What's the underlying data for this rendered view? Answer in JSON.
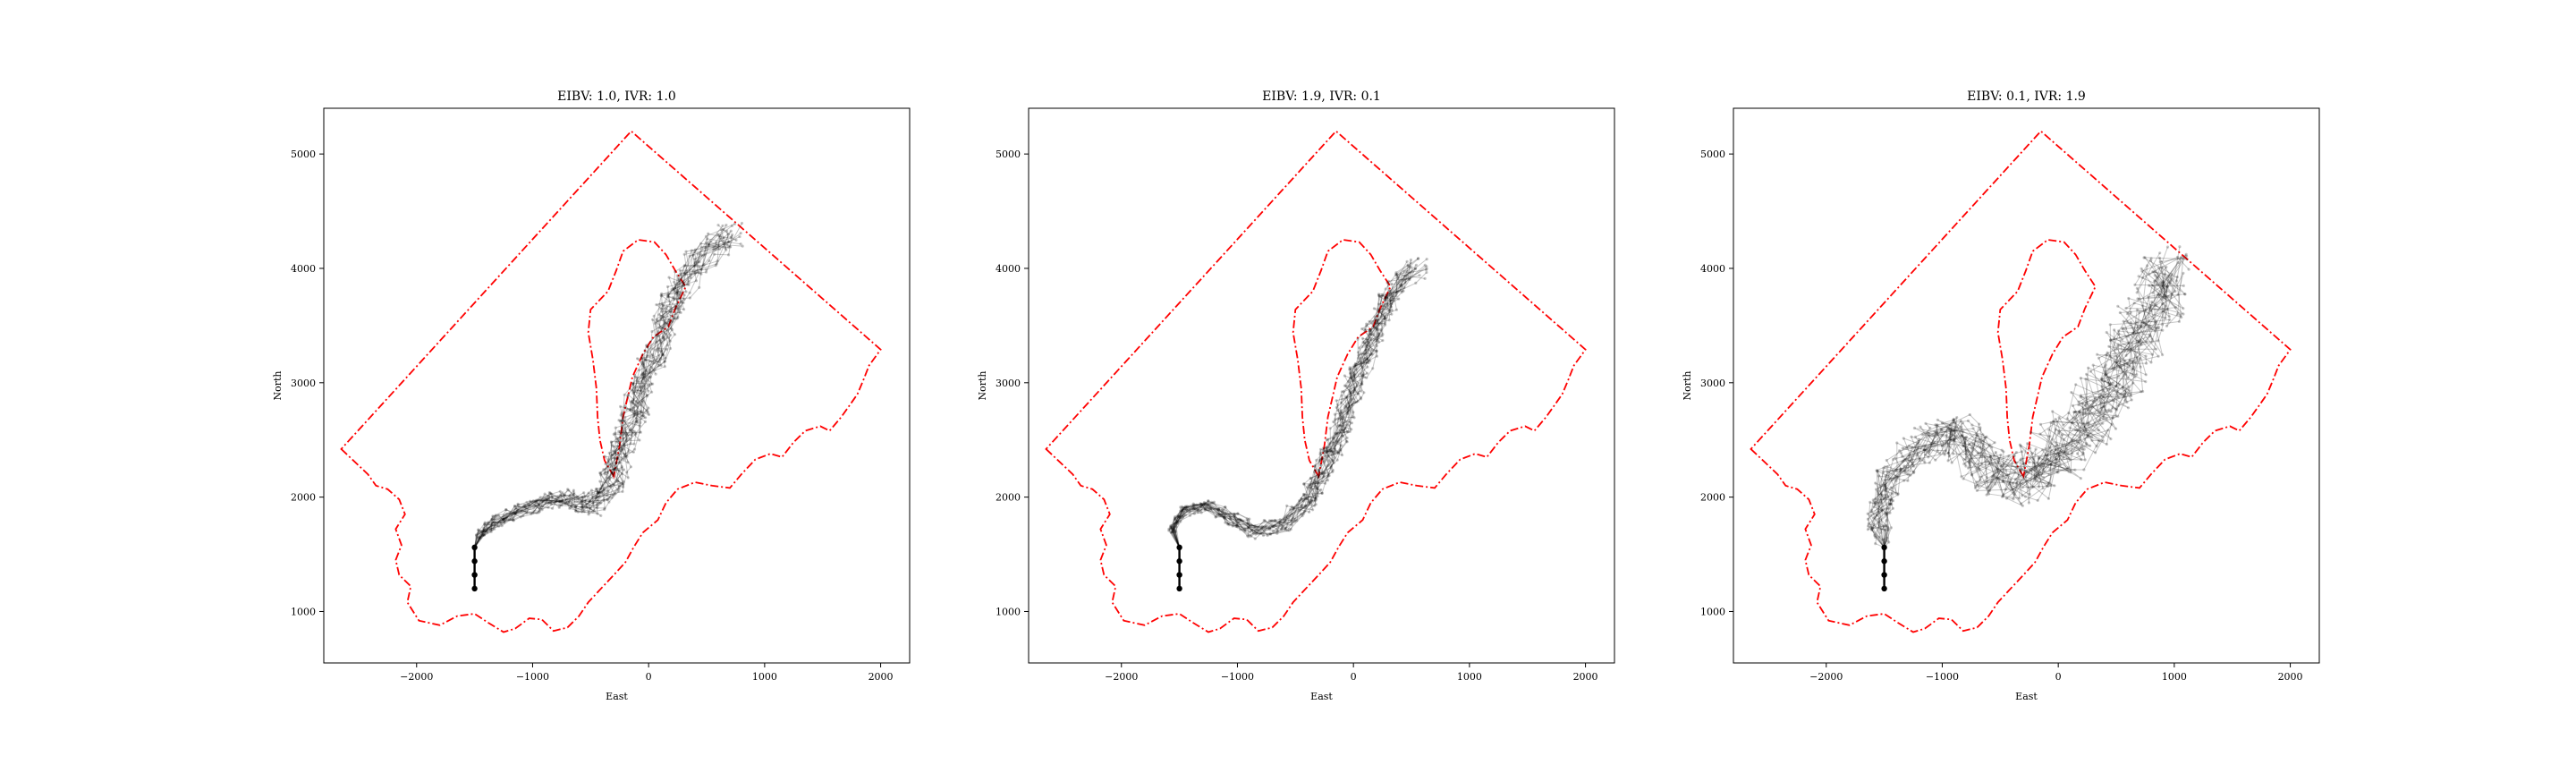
{
  "chart_data": [
    {
      "type": "line",
      "title": "EIBV: 1.0, IVR: 1.0",
      "xlabel": "East",
      "ylabel": "North",
      "xlim": [
        -2800,
        2250
      ],
      "ylim": [
        550,
        5400
      ],
      "xticks": [
        -2000,
        -1000,
        0,
        1000,
        2000
      ],
      "yticks": [
        1000,
        2000,
        3000,
        4000,
        5000
      ],
      "tick_labels_x": [
        "−2000",
        "−1000",
        "0",
        "1000",
        "2000"
      ],
      "tick_labels_y": [
        "1000",
        "2000",
        "3000",
        "4000",
        "5000"
      ],
      "grid": false,
      "path_color": "#000000",
      "boundary_color": "#ff0000",
      "start": [
        -1500,
        1200
      ],
      "initial_path": [
        [
          -1500,
          1200
        ],
        [
          -1500,
          1320
        ],
        [
          -1500,
          1440
        ],
        [
          -1500,
          1560
        ]
      ],
      "route_centerline": [
        [
          -1500,
          1560
        ],
        [
          -1450,
          1680
        ],
        [
          -1300,
          1790
        ],
        [
          -1100,
          1880
        ],
        [
          -900,
          1960
        ],
        [
          -700,
          1990
        ],
        [
          -500,
          1920
        ],
        [
          -350,
          2050
        ],
        [
          -250,
          2350
        ],
        [
          -100,
          2800
        ],
        [
          50,
          3250
        ],
        [
          200,
          3700
        ],
        [
          400,
          4050
        ],
        [
          700,
          4300
        ]
      ],
      "route_spread": 110,
      "n_runs": 22
    },
    {
      "type": "line",
      "title": "EIBV: 1.9, IVR: 0.1",
      "xlabel": "East",
      "ylabel": "North",
      "xlim": [
        -2800,
        2250
      ],
      "ylim": [
        550,
        5400
      ],
      "xticks": [
        -2000,
        -1000,
        0,
        1000,
        2000
      ],
      "yticks": [
        1000,
        2000,
        3000,
        4000,
        5000
      ],
      "tick_labels_x": [
        "−2000",
        "−1000",
        "0",
        "1000",
        "2000"
      ],
      "tick_labels_y": [
        "1000",
        "2000",
        "3000",
        "4000",
        "5000"
      ],
      "grid": false,
      "path_color": "#000000",
      "boundary_color": "#ff0000",
      "start": [
        -1500,
        1200
      ],
      "initial_path": [
        [
          -1500,
          1200
        ],
        [
          -1500,
          1320
        ],
        [
          -1500,
          1440
        ],
        [
          -1500,
          1560
        ]
      ],
      "route_centerline": [
        [
          -1500,
          1560
        ],
        [
          -1560,
          1720
        ],
        [
          -1450,
          1880
        ],
        [
          -1250,
          1920
        ],
        [
          -1050,
          1800
        ],
        [
          -850,
          1700
        ],
        [
          -600,
          1760
        ],
        [
          -400,
          1950
        ],
        [
          -250,
          2250
        ],
        [
          -100,
          2650
        ],
        [
          50,
          3100
        ],
        [
          200,
          3500
        ],
        [
          350,
          3800
        ],
        [
          550,
          4000
        ]
      ],
      "route_spread": 90,
      "n_runs": 22
    },
    {
      "type": "line",
      "title": "EIBV: 0.1, IVR: 1.9",
      "xlabel": "East",
      "ylabel": "North",
      "xlim": [
        -2800,
        2250
      ],
      "ylim": [
        550,
        5400
      ],
      "xticks": [
        -2000,
        -1000,
        0,
        1000,
        2000
      ],
      "yticks": [
        1000,
        2000,
        3000,
        4000,
        5000
      ],
      "tick_labels_x": [
        "−2000",
        "−1000",
        "0",
        "1000",
        "2000"
      ],
      "tick_labels_y": [
        "1000",
        "2000",
        "3000",
        "4000",
        "5000"
      ],
      "grid": false,
      "path_color": "#000000",
      "boundary_color": "#ff0000",
      "start": [
        -1500,
        1200
      ],
      "initial_path": [
        [
          -1500,
          1200
        ],
        [
          -1500,
          1320
        ],
        [
          -1500,
          1440
        ],
        [
          -1500,
          1560
        ]
      ],
      "route_centerline": [
        [
          -1500,
          1560
        ],
        [
          -1550,
          1800
        ],
        [
          -1450,
          2150
        ],
        [
          -1200,
          2450
        ],
        [
          -900,
          2550
        ],
        [
          -650,
          2350
        ],
        [
          -400,
          2150
        ],
        [
          -100,
          2300
        ],
        [
          200,
          2600
        ],
        [
          450,
          2950
        ],
        [
          650,
          3350
        ],
        [
          850,
          3700
        ],
        [
          900,
          4000
        ]
      ],
      "route_spread": 230,
      "n_runs": 22
    }
  ],
  "domain": {
    "outer_boundary": [
      [
        -2650,
        2420
      ],
      [
        -2420,
        2200
      ],
      [
        -2350,
        2100
      ],
      [
        -2250,
        2070
      ],
      [
        -2150,
        1980
      ],
      [
        -2100,
        1850
      ],
      [
        -2180,
        1720
      ],
      [
        -2130,
        1580
      ],
      [
        -2180,
        1450
      ],
      [
        -2150,
        1320
      ],
      [
        -2050,
        1220
      ],
      [
        -2080,
        1080
      ],
      [
        -1980,
        920
      ],
      [
        -1800,
        880
      ],
      [
        -1650,
        960
      ],
      [
        -1500,
        980
      ],
      [
        -1380,
        900
      ],
      [
        -1250,
        820
      ],
      [
        -1150,
        850
      ],
      [
        -1030,
        940
      ],
      [
        -920,
        930
      ],
      [
        -820,
        830
      ],
      [
        -700,
        860
      ],
      [
        -600,
        960
      ],
      [
        -520,
        1080
      ],
      [
        -420,
        1190
      ],
      [
        -300,
        1320
      ],
      [
        -200,
        1430
      ],
      [
        -130,
        1560
      ],
      [
        -50,
        1690
      ],
      [
        80,
        1800
      ],
      [
        150,
        1950
      ],
      [
        250,
        2070
      ],
      [
        400,
        2130
      ],
      [
        550,
        2100
      ],
      [
        700,
        2080
      ],
      [
        800,
        2200
      ],
      [
        920,
        2330
      ],
      [
        1050,
        2380
      ],
      [
        1150,
        2350
      ],
      [
        1250,
        2480
      ],
      [
        1350,
        2580
      ],
      [
        1480,
        2620
      ],
      [
        1560,
        2580
      ],
      [
        1660,
        2700
      ],
      [
        1730,
        2800
      ],
      [
        1800,
        2900
      ],
      [
        1850,
        3020
      ],
      [
        1900,
        3150
      ],
      [
        2000,
        3290
      ],
      [
        -150,
        5200
      ],
      [
        -2650,
        2420
      ]
    ],
    "inner_boundary": [
      [
        -300,
        2180
      ],
      [
        -380,
        2320
      ],
      [
        -420,
        2500
      ],
      [
        -440,
        2700
      ],
      [
        -450,
        2950
      ],
      [
        -480,
        3200
      ],
      [
        -520,
        3440
      ],
      [
        -500,
        3640
      ],
      [
        -350,
        3800
      ],
      [
        -280,
        3980
      ],
      [
        -220,
        4150
      ],
      [
        -90,
        4250
      ],
      [
        50,
        4230
      ],
      [
        150,
        4120
      ],
      [
        230,
        3980
      ],
      [
        320,
        3840
      ],
      [
        230,
        3650
      ],
      [
        170,
        3490
      ],
      [
        40,
        3400
      ],
      [
        -50,
        3250
      ],
      [
        -140,
        3050
      ],
      [
        -220,
        2700
      ],
      [
        -250,
        2450
      ],
      [
        -300,
        2180
      ]
    ]
  }
}
